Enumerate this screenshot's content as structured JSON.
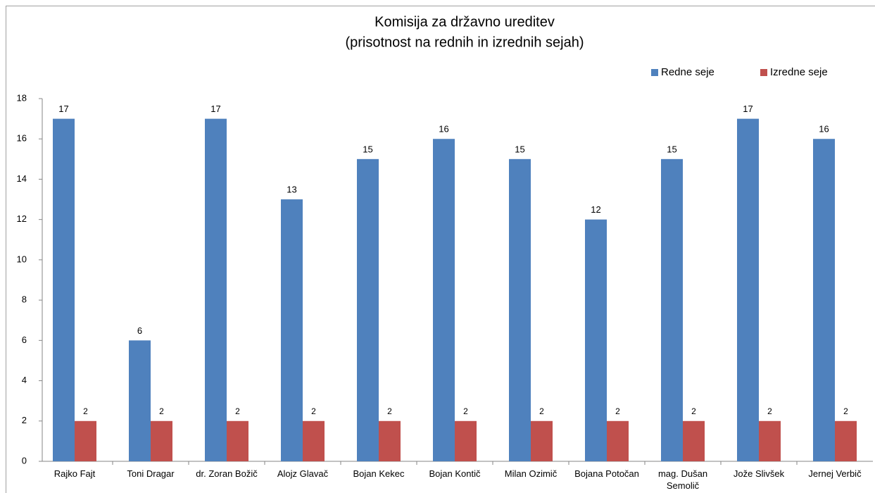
{
  "chart_data": {
    "type": "bar",
    "title": "Komisija za državno ureditev",
    "subtitle": "(prisotnost na rednih in izrednih sejah)",
    "categories": [
      "Rajko Fajt",
      "Toni Dragar",
      "dr. Zoran Božič",
      "Alojz Glavač",
      "Bojan Kekec",
      "Bojan Kontič",
      "Milan Ozimič",
      "Bojana Potočan",
      "mag. Dušan Semolič",
      "Jože Slivšek",
      "Jernej Verbič"
    ],
    "series": [
      {
        "name": "Redne seje",
        "color": "#4f81bd",
        "values": [
          17,
          6,
          17,
          13,
          15,
          16,
          15,
          12,
          15,
          17,
          16
        ]
      },
      {
        "name": "Izredne seje",
        "color": "#c0504d",
        "values": [
          2,
          2,
          2,
          2,
          2,
          2,
          2,
          2,
          2,
          2,
          2
        ]
      }
    ],
    "ylim": [
      0,
      18
    ],
    "yticks": [
      0,
      2,
      4,
      6,
      8,
      10,
      12,
      14,
      16,
      18
    ],
    "grid": false,
    "legend": "top-right"
  }
}
